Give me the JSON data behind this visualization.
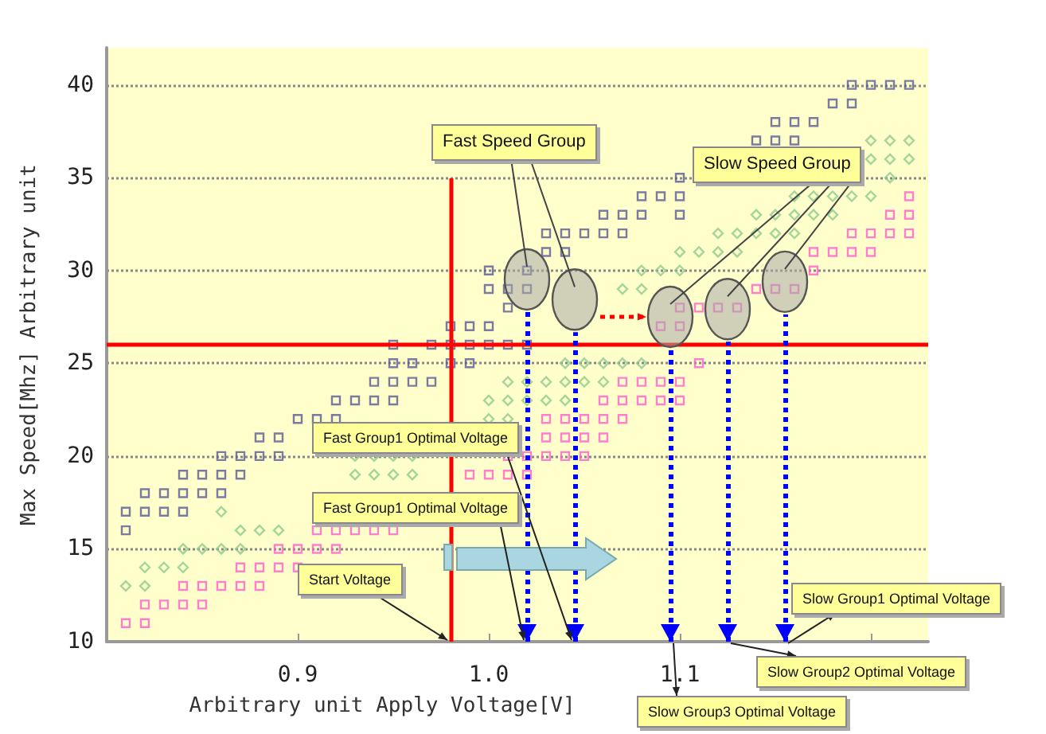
{
  "chart_data": {
    "type": "scatter",
    "xlabel": "Arbitrary unit Apply Voltage[V]",
    "ylabel": "Max Speed[Mhz] Arbitrary unit",
    "xlim": [
      0.8,
      1.23
    ],
    "ylim": [
      10,
      42
    ],
    "xticks": [
      0.9,
      {
        "value": 1,
        "label": "1.0"
      },
      1.1,
      {
        "value": 1.2,
        "label": null
      }
    ],
    "yticks": [
      10,
      15,
      20,
      25,
      30,
      35,
      40
    ],
    "grid": "y",
    "series": [
      {
        "color": "#5a5a96",
        "marker": "square",
        "x": [
          0.81,
          0.81,
          0.82,
          0.83,
          0.84,
          0.82,
          0.83,
          0.84,
          0.85,
          0.86,
          0.84,
          0.85,
          0.86,
          0.87,
          0.86,
          0.87,
          0.88,
          0.89,
          0.88,
          0.89,
          0.9,
          0.91,
          0.92,
          0.92,
          0.93,
          0.94,
          0.95,
          0.94,
          0.95,
          0.96,
          0.97,
          0.95,
          0.96,
          0.98,
          0.99,
          0.95,
          0.97,
          0.98,
          0.99,
          1,
          1.01,
          1.02,
          0.98,
          0.99,
          1,
          1.01,
          1,
          1.01,
          1.02,
          1,
          1.02,
          1.03,
          1.04,
          1.03,
          1.04,
          1.05,
          1.06,
          1.07,
          1.06,
          1.07,
          1.08,
          1.1,
          1.08,
          1.09,
          1.1,
          1.1,
          1.14,
          1.15,
          1.16,
          1.15,
          1.16,
          1.17,
          1.18,
          1.19,
          1.19,
          1.2,
          1.21,
          1.22
        ],
        "values": [
          16,
          17,
          17,
          17,
          17,
          18,
          18,
          18,
          18,
          18,
          19,
          19,
          19,
          19,
          20,
          20,
          20,
          20,
          21,
          21,
          22,
          22,
          22,
          23,
          23,
          23,
          23,
          24,
          24,
          24,
          24,
          25,
          25,
          25,
          25,
          26,
          26,
          26,
          26,
          26,
          26,
          26,
          27,
          27,
          27,
          28,
          29,
          29,
          29,
          30,
          30,
          31,
          31,
          32,
          32,
          32,
          32,
          32,
          33,
          33,
          33,
          33,
          34,
          34,
          34,
          35,
          37,
          37,
          37,
          38,
          38,
          38,
          39,
          39,
          40,
          40,
          40,
          40
        ]
      },
      {
        "color": "#8fca8f",
        "marker": "diamond",
        "x": [
          0.81,
          0.82,
          0.82,
          0.83,
          0.84,
          0.84,
          0.85,
          0.86,
          0.87,
          0.87,
          0.88,
          0.89,
          0.86,
          0.93,
          0.94,
          0.95,
          0.96,
          0.93,
          0.94,
          0.95,
          0.96,
          1,
          1.01,
          1,
          1.01,
          1.02,
          1.03,
          1.04,
          1.01,
          1.02,
          1.03,
          1.04,
          1.05,
          1.06,
          1.04,
          1.05,
          1.06,
          1.07,
          1.08,
          1.07,
          1.08,
          1.08,
          1.09,
          1.1,
          1.1,
          1.11,
          1.12,
          1.13,
          1.12,
          1.13,
          1.14,
          1.15,
          1.16,
          1.14,
          1.15,
          1.16,
          1.17,
          1.18,
          1.16,
          1.17,
          1.18,
          1.19,
          1.2,
          1.21,
          1.2,
          1.21,
          1.22,
          1.2,
          1.21,
          1.22
        ],
        "values": [
          13,
          13,
          14,
          14,
          14,
          15,
          15,
          15,
          15,
          16,
          16,
          16,
          17,
          19,
          19,
          19,
          19,
          20,
          20,
          20,
          20,
          22,
          22,
          23,
          23,
          23,
          23,
          23,
          24,
          24,
          24,
          24,
          24,
          24,
          25,
          25,
          25,
          25,
          25,
          29,
          29,
          30,
          30,
          30,
          31,
          31,
          31,
          31,
          32,
          32,
          32,
          32,
          32,
          33,
          33,
          33,
          33,
          33,
          34,
          34,
          34,
          34,
          34,
          35,
          36,
          36,
          36,
          37,
          37,
          37
        ]
      },
      {
        "color": "#ff5fcf",
        "marker": "square",
        "x": [
          0.81,
          0.82,
          0.82,
          0.83,
          0.84,
          0.85,
          0.84,
          0.85,
          0.86,
          0.87,
          0.88,
          0.87,
          0.88,
          0.89,
          0.9,
          0.89,
          0.9,
          0.91,
          0.92,
          0.91,
          0.92,
          0.93,
          0.94,
          0.95,
          0.99,
          1,
          1.01,
          1.02,
          1.01,
          1.02,
          1.03,
          1.04,
          1.05,
          1.03,
          1.04,
          1.05,
          1.06,
          1.03,
          1.04,
          1.05,
          1.06,
          1.07,
          1.06,
          1.07,
          1.08,
          1.09,
          1.1,
          1.07,
          1.08,
          1.09,
          1.1,
          1.11,
          1.09,
          1.1,
          1.1,
          1.11,
          1.12,
          1.13,
          1.14,
          1.15,
          1.16,
          1.17,
          1.17,
          1.18,
          1.19,
          1.2,
          1.19,
          1.2,
          1.21,
          1.22,
          1.21,
          1.22,
          1.22
        ],
        "values": [
          11,
          11,
          12,
          12,
          12,
          12,
          13,
          13,
          13,
          13,
          13,
          14,
          14,
          14,
          14,
          15,
          15,
          15,
          15,
          16,
          16,
          16,
          16,
          16,
          19,
          19,
          19,
          19,
          20,
          20,
          20,
          20,
          20,
          21,
          21,
          21,
          21,
          22,
          22,
          22,
          22,
          22,
          23,
          23,
          23,
          23,
          23,
          24,
          24,
          24,
          24,
          25,
          27,
          27,
          28,
          28,
          28,
          28,
          29,
          29,
          29,
          30,
          31,
          31,
          31,
          31,
          32,
          32,
          32,
          32,
          33,
          33,
          34
        ]
      }
    ],
    "ref_lines": [
      {
        "axis": "y",
        "value": 26,
        "color": "#ff0000",
        "line_style": "solid"
      },
      {
        "axis": "x",
        "value": 0.98,
        "label": "Start Voltage",
        "color": "#ff0000",
        "line_style": "solid"
      },
      {
        "axis": "x",
        "value": 1.02,
        "label": "Fast Group1 Optimal Voltage",
        "color": "#0000ff",
        "line_style": "dotted"
      },
      {
        "axis": "x",
        "value": 1.045,
        "label": "Fast Group1 Optimal Voltage",
        "color": "#0000ff",
        "line_style": "dotted"
      },
      {
        "axis": "x",
        "value": 1.095,
        "label": "Slow Group3 Optimal Voltage",
        "color": "#0000ff",
        "line_style": "dotted"
      },
      {
        "axis": "x",
        "value": 1.125,
        "label": "Slow Group2 Optimal Voltage",
        "color": "#0000ff",
        "line_style": "dotted"
      },
      {
        "axis": "x",
        "value": 1.155,
        "label": "Slow Group1 Optimal Voltage",
        "color": "#0000ff",
        "line_style": "dotted"
      }
    ],
    "annotations": [
      {
        "text": "Fast Speed Group",
        "x": 1.02,
        "y": 30
      },
      {
        "text": "Slow Speed Group",
        "x": 1.125,
        "y": 28.5
      }
    ]
  }
}
